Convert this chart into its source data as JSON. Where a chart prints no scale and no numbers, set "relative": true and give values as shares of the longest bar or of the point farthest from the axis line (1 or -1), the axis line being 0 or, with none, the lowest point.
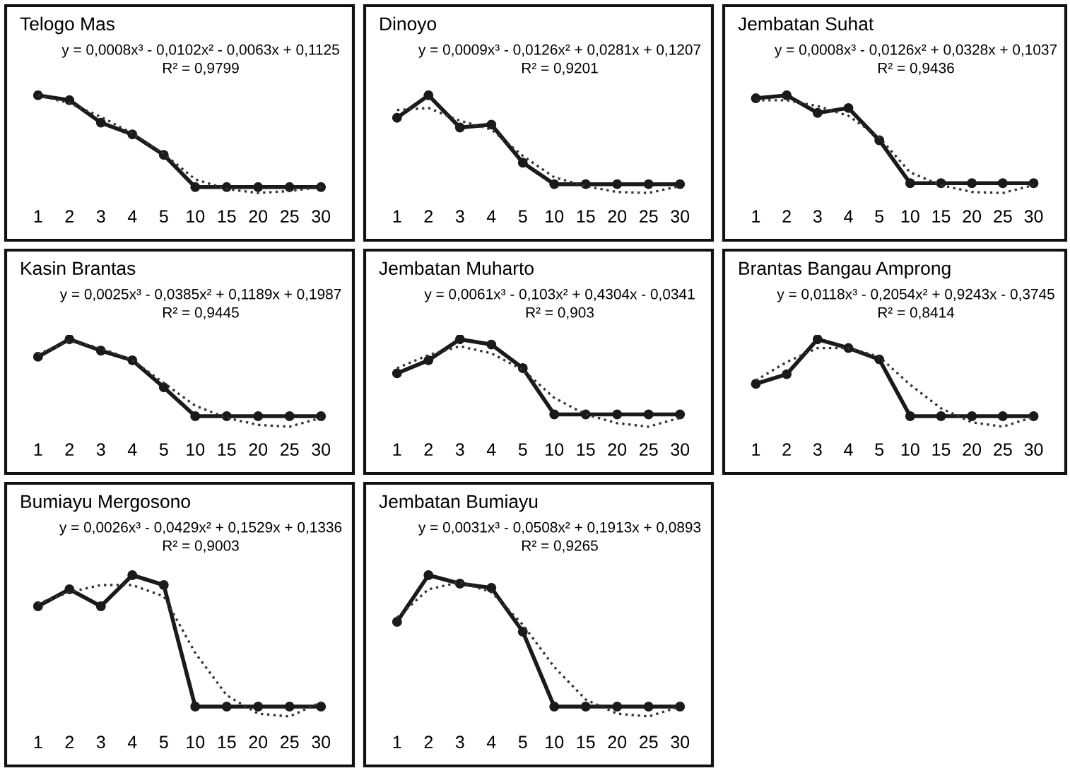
{
  "chart_data": [
    {
      "type": "line",
      "relative": true,
      "title": "Telogo Mas",
      "annotations": [
        "y = 0,0008x³ - 0,0102x² - 0,0063x + 0,1125",
        "R² = 0,9799"
      ],
      "categories": [
        "1",
        "2",
        "3",
        "4",
        "5",
        "10",
        "15",
        "20",
        "25",
        "30"
      ],
      "series": [
        {
          "color": "#1a1a1a",
          "marker": "circle",
          "line_style": "solid",
          "values": [
            1.0,
            0.95,
            0.72,
            0.6,
            0.39,
            0.06,
            0.06,
            0.06,
            0.06,
            0.06
          ]
        },
        {
          "color": "#333333",
          "marker": "none",
          "line_style": "dotted",
          "values": [
            1.0,
            0.92,
            0.78,
            0.61,
            0.4,
            0.14,
            0.04,
            0.0,
            0.02,
            0.06
          ]
        }
      ]
    },
    {
      "type": "line",
      "relative": true,
      "title": "Dinoyo",
      "annotations": [
        "y = 0,0009x³ - 0,0126x² + 0,0281x + 0,1207",
        "R² = 0,9201"
      ],
      "categories": [
        "1",
        "2",
        "3",
        "4",
        "5",
        "10",
        "15",
        "20",
        "25",
        "30"
      ],
      "series": [
        {
          "color": "#1a1a1a",
          "marker": "circle",
          "line_style": "solid",
          "values": [
            0.77,
            1.0,
            0.67,
            0.7,
            0.31,
            0.09,
            0.09,
            0.09,
            0.09,
            0.09
          ]
        },
        {
          "color": "#333333",
          "marker": "none",
          "line_style": "dotted",
          "values": [
            0.85,
            0.87,
            0.74,
            0.65,
            0.38,
            0.16,
            0.07,
            0.01,
            0.0,
            0.07
          ]
        }
      ]
    },
    {
      "type": "line",
      "relative": true,
      "title": "Jembatan Suhat",
      "annotations": [
        "y = 0,0008x³ - 0,0126x² + 0,0328x + 0,1037",
        "R² = 0,9436"
      ],
      "categories": [
        "1",
        "2",
        "3",
        "4",
        "5",
        "10",
        "15",
        "20",
        "25",
        "30"
      ],
      "series": [
        {
          "color": "#1a1a1a",
          "marker": "circle",
          "line_style": "solid",
          "values": [
            0.97,
            1.0,
            0.82,
            0.87,
            0.54,
            0.1,
            0.1,
            0.1,
            0.1,
            0.1
          ]
        },
        {
          "color": "#333333",
          "marker": "none",
          "line_style": "dotted",
          "values": [
            0.95,
            0.95,
            0.89,
            0.79,
            0.57,
            0.21,
            0.08,
            0.01,
            0.0,
            0.08
          ]
        }
      ]
    },
    {
      "type": "line",
      "relative": true,
      "title": "Kasin Brantas",
      "annotations": [
        "y = 0,0025x³ - 0,0385x² + 0,1189x + 0,1987",
        "R² = 0,9445"
      ],
      "categories": [
        "1",
        "2",
        "3",
        "4",
        "5",
        "10",
        "15",
        "20",
        "25",
        "30"
      ],
      "series": [
        {
          "color": "#1a1a1a",
          "marker": "circle",
          "line_style": "solid",
          "values": [
            0.8,
            1.0,
            0.87,
            0.76,
            0.45,
            0.12,
            0.12,
            0.12,
            0.12,
            0.12
          ]
        },
        {
          "color": "#333333",
          "marker": "none",
          "line_style": "dotted",
          "values": [
            0.83,
            0.98,
            0.9,
            0.76,
            0.5,
            0.24,
            0.1,
            0.02,
            0.0,
            0.1
          ]
        }
      ]
    },
    {
      "type": "line",
      "relative": true,
      "title": "Jembatan Muharto",
      "annotations": [
        "y = 0,0061x³ - 0,103x² + 0,4304x - 0,0341",
        "R² = 0,903"
      ],
      "categories": [
        "1",
        "2",
        "3",
        "4",
        "5",
        "10",
        "15",
        "20",
        "25",
        "30"
      ],
      "series": [
        {
          "color": "#1a1a1a",
          "marker": "circle",
          "line_style": "solid",
          "values": [
            0.61,
            0.76,
            1.0,
            0.94,
            0.67,
            0.14,
            0.14,
            0.14,
            0.14,
            0.14
          ]
        },
        {
          "color": "#333333",
          "marker": "none",
          "line_style": "dotted",
          "values": [
            0.67,
            0.82,
            0.92,
            0.84,
            0.65,
            0.33,
            0.14,
            0.04,
            0.0,
            0.1
          ]
        }
      ]
    },
    {
      "type": "line",
      "relative": true,
      "title": "Brantas Bangau Amprong",
      "annotations": [
        "y = 0,0118x³ - 0,2054x² + 0,9243x - 0,3745",
        "R² = 0,8414"
      ],
      "categories": [
        "1",
        "2",
        "3",
        "4",
        "5",
        "10",
        "15",
        "20",
        "25",
        "30"
      ],
      "series": [
        {
          "color": "#1a1a1a",
          "marker": "circle",
          "line_style": "solid",
          "values": [
            0.49,
            0.6,
            1.0,
            0.9,
            0.77,
            0.12,
            0.12,
            0.12,
            0.12,
            0.12
          ]
        },
        {
          "color": "#333333",
          "marker": "none",
          "line_style": "dotted",
          "values": [
            0.53,
            0.74,
            0.9,
            0.9,
            0.8,
            0.48,
            0.21,
            0.05,
            0.0,
            0.11
          ]
        }
      ]
    },
    {
      "type": "line",
      "relative": true,
      "title": "Bumiayu Mergosono",
      "annotations": [
        "y = 0,0026x³ - 0,0429x² + 0,1529x + 0,1336",
        "R² = 0,9003"
      ],
      "categories": [
        "1",
        "2",
        "3",
        "4",
        "5",
        "10",
        "15",
        "20",
        "25",
        "30"
      ],
      "series": [
        {
          "color": "#1a1a1a",
          "marker": "circle",
          "line_style": "solid",
          "values": [
            0.78,
            0.9,
            0.78,
            1.0,
            0.93,
            0.07,
            0.07,
            0.07,
            0.07,
            0.07
          ]
        },
        {
          "color": "#333333",
          "marker": "none",
          "line_style": "dotted",
          "values": [
            0.8,
            0.88,
            0.93,
            0.93,
            0.85,
            0.45,
            0.15,
            0.02,
            0.0,
            0.1
          ]
        }
      ]
    },
    {
      "type": "line",
      "relative": true,
      "title": "Jembatan Bumiayu",
      "annotations": [
        "y = 0,0031x³ - 0,0508x² + 0,1913x + 0,0893",
        "R² = 0,9265"
      ],
      "categories": [
        "1",
        "2",
        "3",
        "4",
        "5",
        "10",
        "15",
        "20",
        "25",
        "30"
      ],
      "series": [
        {
          "color": "#1a1a1a",
          "marker": "circle",
          "line_style": "solid",
          "values": [
            0.67,
            1.0,
            0.94,
            0.91,
            0.6,
            0.07,
            0.07,
            0.07,
            0.07,
            0.07
          ]
        },
        {
          "color": "#333333",
          "marker": "none",
          "line_style": "dotted",
          "values": [
            0.7,
            0.9,
            0.95,
            0.88,
            0.65,
            0.35,
            0.12,
            0.02,
            0.0,
            0.07
          ]
        }
      ]
    }
  ]
}
